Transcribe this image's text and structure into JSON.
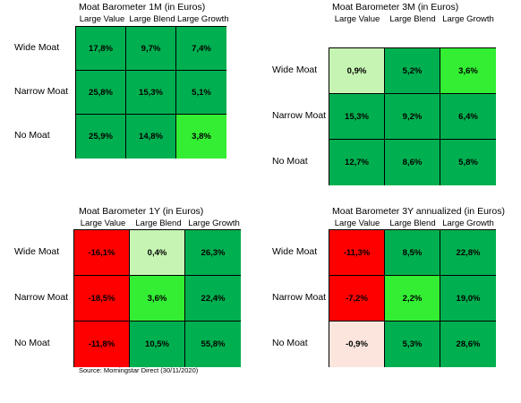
{
  "chart_data": [
    {
      "type": "heatmap",
      "title": "Moat Barometer 1M (in Euros)",
      "columns": [
        "Large Value",
        "Large Blend",
        "Large Growth"
      ],
      "rows": [
        "Wide Moat",
        "Narrow Moat",
        "No Moat"
      ],
      "values": [
        [
          "17,8%",
          "9,7%",
          "7,4%"
        ],
        [
          "25,8%",
          "15,3%",
          "5,1%"
        ],
        [
          "25,9%",
          "14,8%",
          "3,8%"
        ]
      ],
      "colors": [
        [
          "#00b050",
          "#00b050",
          "#00b050"
        ],
        [
          "#00b050",
          "#00b050",
          "#00b050"
        ],
        [
          "#00b050",
          "#00b050",
          "#33ee33"
        ]
      ]
    },
    {
      "type": "heatmap",
      "title": "Moat Barometer 3M (in Euros)",
      "columns": [
        "Large Value",
        "Large Blend",
        "Large Growth"
      ],
      "rows": [
        "Wide Moat",
        "Narrow Moat",
        "No Moat"
      ],
      "values": [
        [
          "0,9%",
          "5,2%",
          "3,6%"
        ],
        [
          "15,3%",
          "9,2%",
          "6,4%"
        ],
        [
          "12,7%",
          "8,6%",
          "5,8%"
        ]
      ],
      "colors": [
        [
          "#c6f5b3",
          "#00b050",
          "#33ee33"
        ],
        [
          "#00b050",
          "#00b050",
          "#00b050"
        ],
        [
          "#00b050",
          "#00b050",
          "#00b050"
        ]
      ]
    },
    {
      "type": "heatmap",
      "title": "Moat Barometer 1Y (in Euros)",
      "columns": [
        "Large Value",
        "Large Blend",
        "Large Growth"
      ],
      "rows": [
        "Wide Moat",
        "Narrow Moat",
        "No Moat"
      ],
      "values": [
        [
          "-16,1%",
          "0,4%",
          "26,3%"
        ],
        [
          "-18,5%",
          "3,6%",
          "22,4%"
        ],
        [
          "-11,8%",
          "10,5%",
          "55,8%"
        ]
      ],
      "colors": [
        [
          "#ff0000",
          "#c6f5b3",
          "#00b050"
        ],
        [
          "#ff0000",
          "#33ee33",
          "#00b050"
        ],
        [
          "#ff0000",
          "#00b050",
          "#00b050"
        ]
      ]
    },
    {
      "type": "heatmap",
      "title": "Moat Barometer 3Y annualized (in Euros)",
      "columns": [
        "Large Value",
        "Large Blend",
        "Large Growth"
      ],
      "rows": [
        "Wide Moat",
        "Narrow Moat",
        "No Moat"
      ],
      "values": [
        [
          "-11,3%",
          "8,5%",
          "22,8%"
        ],
        [
          "-7,2%",
          "2,2%",
          "19,0%"
        ],
        [
          "-0,9%",
          "5,3%",
          "28,6%"
        ]
      ],
      "colors": [
        [
          "#ff0000",
          "#00b050",
          "#00b050"
        ],
        [
          "#ff0000",
          "#33ee33",
          "#00b050"
        ],
        [
          "#fbe5dc",
          "#00b050",
          "#00b050"
        ]
      ]
    }
  ],
  "source": "Source: Morningstar Direct (30/11/2020)"
}
